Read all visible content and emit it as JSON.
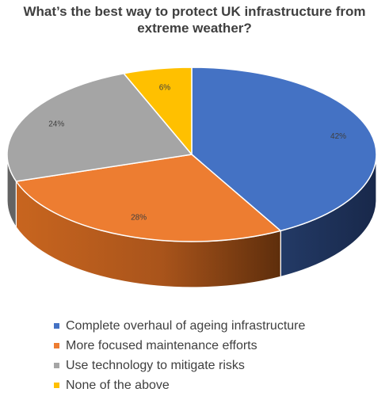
{
  "chart_data": {
    "type": "pie",
    "title": "What’s the best way to protect UK infrastructure from extreme weather?",
    "categories": [
      "Complete overhaul of ageing infrastructure",
      "More focused maintenance efforts",
      "Use technology to mitigate risks",
      "None of the above"
    ],
    "values": [
      42,
      28,
      24,
      6
    ],
    "value_labels": [
      "42%",
      "28%",
      "24%",
      "6%"
    ],
    "colors": [
      "#4472C4",
      "#ED7D31",
      "#A5A5A5",
      "#FFC000"
    ],
    "legend_position": "bottom"
  }
}
